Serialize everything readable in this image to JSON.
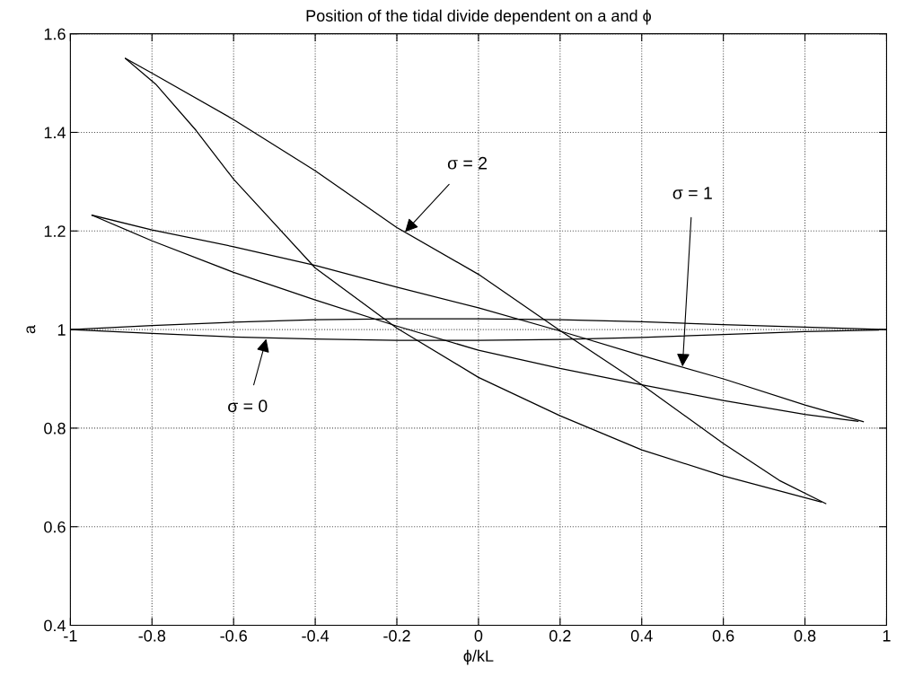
{
  "chart_data": {
    "type": "line",
    "title": "Position of the tidal divide dependent on a and ϕ",
    "xlabel": "ϕ/kL",
    "ylabel": "a",
    "xlim": [
      -1,
      1
    ],
    "xticks": [
      -1,
      -0.8,
      -0.6,
      -0.4,
      -0.2,
      0,
      0.2,
      0.4,
      0.6,
      0.8,
      1
    ],
    "ylim": [
      0.4,
      1.6
    ],
    "yticks": [
      0.4,
      0.6,
      0.8,
      1,
      1.2,
      1.4,
      1.6
    ],
    "grid": true,
    "line_style": "solid",
    "marker": "none",
    "series": [
      {
        "color": "#000000",
        "x": [
          -1,
          -0.8,
          -0.6,
          -0.4,
          -0.2,
          0,
          0.2,
          0.4,
          0.6,
          0.8,
          1
        ],
        "values": [
          1.0,
          1.008,
          1.015,
          1.02,
          1.022,
          1.022,
          1.02,
          1.016,
          1.01,
          1.005,
          1.0
        ]
      },
      {
        "color": "#000000",
        "x": [
          -1,
          -0.8,
          -0.6,
          -0.4,
          -0.2,
          0,
          0.2,
          0.4,
          0.6,
          0.8,
          0.98
        ],
        "values": [
          1.0,
          0.992,
          0.985,
          0.981,
          0.978,
          0.978,
          0.98,
          0.984,
          0.99,
          0.996,
          0.999
        ]
      },
      {
        "color": "#000000",
        "x": [
          -0.947,
          -0.8,
          -0.6,
          -0.4,
          -0.2,
          0,
          0.2,
          0.4,
          0.6,
          0.8,
          0.943
        ],
        "values": [
          1.232,
          1.202,
          1.168,
          1.13,
          1.086,
          1.044,
          0.997,
          0.947,
          0.9,
          0.847,
          0.813
        ]
      },
      {
        "color": "#000000",
        "x": [
          -0.947,
          -0.8,
          -0.6,
          -0.4,
          -0.2,
          0,
          0.2,
          0.4,
          0.6,
          0.8,
          0.93
        ],
        "values": [
          1.232,
          1.18,
          1.116,
          1.06,
          1.007,
          0.958,
          0.921,
          0.888,
          0.856,
          0.828,
          0.814
        ]
      },
      {
        "color": "#000000",
        "x": [
          -0.865,
          -0.8,
          -0.6,
          -0.4,
          -0.2,
          0,
          0.2,
          0.4,
          0.6,
          0.737,
          0.851
        ],
        "values": [
          1.55,
          1.52,
          1.426,
          1.322,
          1.207,
          1.112,
          0.998,
          0.888,
          0.769,
          0.694,
          0.647
        ]
      },
      {
        "color": "#000000",
        "x": [
          -0.865,
          -0.791,
          -0.692,
          -0.6,
          -0.4,
          -0.2,
          0,
          0.2,
          0.4,
          0.6,
          0.8,
          0.84
        ],
        "values": [
          1.55,
          1.498,
          1.404,
          1.305,
          1.125,
          1.003,
          0.903,
          0.825,
          0.756,
          0.703,
          0.659,
          0.65
        ]
      }
    ],
    "annotations": [
      {
        "text": "σ = 2",
        "x": -0.18,
        "y": 1.198
      },
      {
        "text": "σ = 1",
        "x": 0.5,
        "y": 0.925
      },
      {
        "text": "σ = 0",
        "x": -0.52,
        "y": 0.981
      }
    ]
  }
}
